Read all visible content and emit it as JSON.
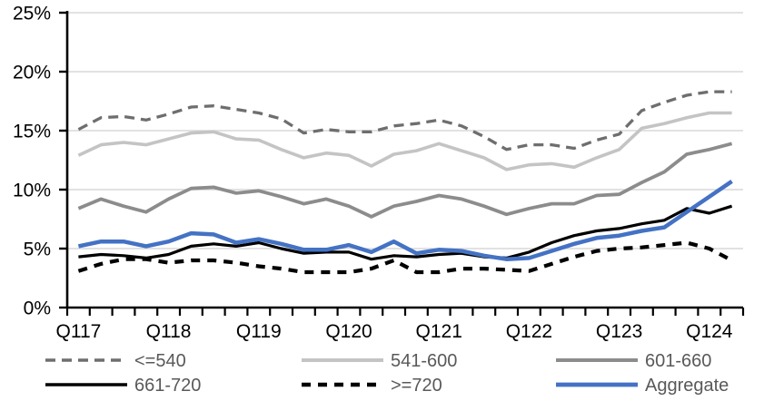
{
  "chart_data": {
    "type": "line",
    "title": "",
    "xlabel": "",
    "ylabel": "",
    "ylim": [
      0,
      25
    ],
    "grid": "horizontal",
    "legend_position": "bottom",
    "y_ticks": [
      {
        "value": 0,
        "label": "0%"
      },
      {
        "value": 5,
        "label": "5%"
      },
      {
        "value": 10,
        "label": "10%"
      },
      {
        "value": 15,
        "label": "15%"
      },
      {
        "value": 20,
        "label": "20%"
      },
      {
        "value": 25,
        "label": "25%"
      }
    ],
    "x_labels": [
      "Q117",
      "Q217",
      "Q317",
      "Q417",
      "Q118",
      "Q218",
      "Q318",
      "Q418",
      "Q119",
      "Q219",
      "Q319",
      "Q419",
      "Q120",
      "Q220",
      "Q320",
      "Q420",
      "Q121",
      "Q221",
      "Q321",
      "Q421",
      "Q122",
      "Q222",
      "Q322",
      "Q422",
      "Q123",
      "Q223",
      "Q323",
      "Q423",
      "Q124",
      "Q224"
    ],
    "x_tick_labels_shown": [
      "Q117",
      "Q118",
      "Q119",
      "Q120",
      "Q121",
      "Q122",
      "Q123",
      "Q124"
    ],
    "x_tick_label_indices": [
      0,
      4,
      8,
      12,
      16,
      20,
      24,
      28
    ],
    "series": [
      {
        "name": "<=540",
        "color": "#6e6e6e",
        "style": "dashed",
        "width": 3.3,
        "dash": "11 7",
        "values": [
          15.1,
          16.1,
          16.2,
          15.9,
          16.4,
          17.0,
          17.1,
          16.8,
          16.5,
          16.0,
          14.8,
          15.1,
          14.9,
          14.9,
          15.4,
          15.6,
          15.9,
          15.4,
          14.5,
          13.4,
          13.8,
          13.8,
          13.5,
          14.2,
          14.7,
          16.7,
          17.4,
          18.0,
          18.3,
          18.3
        ]
      },
      {
        "name": "541-600",
        "color": "#c4c4c4",
        "style": "solid",
        "width": 3.6,
        "dash": null,
        "values": [
          12.9,
          13.8,
          14.0,
          13.8,
          14.3,
          14.8,
          14.9,
          14.3,
          14.2,
          13.4,
          12.7,
          13.1,
          12.9,
          12.0,
          13.0,
          13.3,
          13.9,
          13.3,
          12.7,
          11.7,
          12.1,
          12.2,
          11.9,
          12.7,
          13.4,
          15.2,
          15.6,
          16.1,
          16.5,
          16.5
        ]
      },
      {
        "name": "601-660",
        "color": "#8c8c8c",
        "style": "solid",
        "width": 3.8,
        "dash": null,
        "values": [
          8.4,
          9.2,
          8.6,
          8.1,
          9.2,
          10.1,
          10.2,
          9.7,
          9.9,
          9.4,
          8.8,
          9.2,
          8.6,
          7.7,
          8.6,
          9.0,
          9.5,
          9.2,
          8.6,
          7.9,
          8.4,
          8.8,
          8.8,
          9.5,
          9.6,
          10.6,
          11.5,
          13.0,
          13.4,
          13.9
        ]
      },
      {
        "name": "661-720",
        "color": "#000000",
        "style": "solid",
        "width": 3.2,
        "dash": null,
        "values": [
          4.3,
          4.5,
          4.4,
          4.2,
          4.5,
          5.2,
          5.4,
          5.2,
          5.5,
          5.0,
          4.6,
          4.7,
          4.7,
          4.1,
          4.4,
          4.3,
          4.5,
          4.6,
          4.3,
          4.2,
          4.7,
          5.5,
          6.1,
          6.5,
          6.7,
          7.1,
          7.4,
          8.4,
          8.0,
          8.6
        ]
      },
      {
        "name": ">=720",
        "color": "#000000",
        "style": "dashed",
        "width": 4.2,
        "dash": "10 8",
        "values": [
          3.1,
          3.7,
          4.1,
          4.1,
          3.8,
          4.0,
          4.0,
          3.8,
          3.5,
          3.3,
          3.0,
          3.0,
          3.0,
          3.3,
          4.0,
          3.0,
          3.0,
          3.3,
          3.3,
          3.2,
          3.1,
          3.7,
          4.3,
          4.8,
          5.0,
          5.1,
          5.3,
          5.5,
          5.0,
          4.0
        ]
      },
      {
        "name": "Aggregate",
        "color": "#4472c4",
        "style": "solid",
        "width": 4.5,
        "dash": null,
        "values": [
          5.2,
          5.6,
          5.6,
          5.2,
          5.6,
          6.3,
          6.2,
          5.5,
          5.8,
          5.4,
          4.9,
          4.9,
          5.3,
          4.7,
          5.6,
          4.6,
          4.9,
          4.8,
          4.4,
          4.1,
          4.2,
          4.8,
          5.4,
          5.9,
          6.1,
          6.5,
          6.8,
          8.1,
          9.4,
          10.7
        ]
      }
    ],
    "legend_rows": [
      [
        0,
        1,
        2
      ],
      [
        3,
        4,
        5
      ]
    ]
  },
  "colors": {
    "background": "#ffffff",
    "gridline": "#d9d9d9",
    "axis": "#000000",
    "tick_label": "#000000",
    "legend_text": "#595959"
  }
}
